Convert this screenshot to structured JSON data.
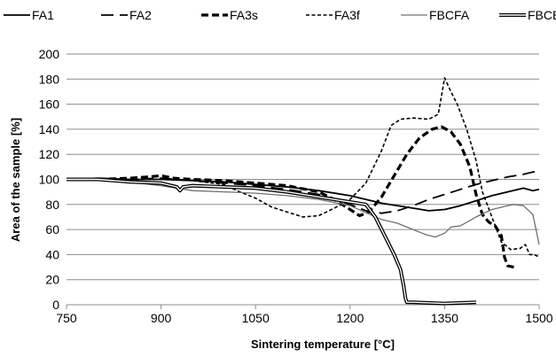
{
  "chart_data": {
    "type": "line",
    "xlabel": "Sintering temperature [°C]",
    "ylabel": "Area of the sample [%]",
    "xlim": [
      750,
      1500
    ],
    "ylim": [
      0,
      200
    ],
    "x_ticks": [
      "750",
      "900",
      "1050",
      "1200",
      "1350",
      "1500"
    ],
    "y_ticks": [
      "0",
      "20",
      "40",
      "60",
      "80",
      "100",
      "120",
      "140",
      "160",
      "180",
      "200"
    ],
    "grid": "horizontal",
    "legend_position": "top",
    "series": [
      {
        "name": "FA1",
        "style": "solid",
        "color": "#000000",
        "points": [
          [
            750,
            100
          ],
          [
            800,
            101
          ],
          [
            850,
            100
          ],
          [
            900,
            100
          ],
          [
            950,
            99
          ],
          [
            1000,
            98
          ],
          [
            1050,
            96
          ],
          [
            1100,
            94
          ],
          [
            1150,
            91
          ],
          [
            1200,
            87
          ],
          [
            1250,
            81
          ],
          [
            1300,
            77
          ],
          [
            1325,
            75
          ],
          [
            1350,
            76
          ],
          [
            1375,
            79
          ],
          [
            1400,
            83
          ],
          [
            1425,
            87
          ],
          [
            1450,
            90
          ],
          [
            1475,
            93
          ],
          [
            1490,
            91
          ],
          [
            1500,
            92
          ]
        ]
      },
      {
        "name": "FA2",
        "style": "long-dash",
        "color": "#000000",
        "points": [
          [
            750,
            100
          ],
          [
            800,
            100
          ],
          [
            850,
            100
          ],
          [
            900,
            101
          ],
          [
            950,
            99
          ],
          [
            1000,
            97
          ],
          [
            1050,
            95
          ],
          [
            1100,
            92
          ],
          [
            1150,
            88
          ],
          [
            1200,
            80
          ],
          [
            1225,
            75
          ],
          [
            1250,
            73
          ],
          [
            1275,
            75
          ],
          [
            1300,
            79
          ],
          [
            1325,
            84
          ],
          [
            1350,
            88
          ],
          [
            1375,
            92
          ],
          [
            1400,
            96
          ],
          [
            1425,
            99
          ],
          [
            1450,
            102
          ],
          [
            1475,
            104
          ],
          [
            1500,
            107
          ]
        ]
      },
      {
        "name": "FA3s",
        "style": "bold-dash",
        "color": "#000000",
        "points": [
          [
            750,
            100
          ],
          [
            800,
            100
          ],
          [
            850,
            101
          ],
          [
            880,
            102
          ],
          [
            900,
            103
          ],
          [
            920,
            101
          ],
          [
            950,
            100
          ],
          [
            1000,
            99
          ],
          [
            1050,
            97
          ],
          [
            1100,
            95
          ],
          [
            1150,
            90
          ],
          [
            1175,
            84
          ],
          [
            1200,
            76
          ],
          [
            1215,
            71
          ],
          [
            1230,
            74
          ],
          [
            1250,
            86
          ],
          [
            1270,
            103
          ],
          [
            1290,
            120
          ],
          [
            1310,
            133
          ],
          [
            1330,
            140
          ],
          [
            1345,
            142
          ],
          [
            1360,
            138
          ],
          [
            1375,
            128
          ],
          [
            1390,
            110
          ],
          [
            1400,
            88
          ],
          [
            1410,
            72
          ],
          [
            1420,
            66
          ],
          [
            1430,
            63
          ],
          [
            1440,
            55
          ],
          [
            1445,
            38
          ],
          [
            1450,
            31
          ],
          [
            1460,
            30
          ]
        ]
      },
      {
        "name": "FA3f",
        "style": "dotted",
        "color": "#000000",
        "points": [
          [
            750,
            100
          ],
          [
            800,
            100
          ],
          [
            850,
            100
          ],
          [
            900,
            100
          ],
          [
            950,
            99
          ],
          [
            1000,
            96
          ],
          [
            1025,
            90
          ],
          [
            1050,
            85
          ],
          [
            1075,
            78
          ],
          [
            1100,
            74
          ],
          [
            1125,
            70
          ],
          [
            1150,
            71
          ],
          [
            1175,
            77
          ],
          [
            1200,
            84
          ],
          [
            1225,
            97
          ],
          [
            1250,
            123
          ],
          [
            1265,
            143
          ],
          [
            1280,
            148
          ],
          [
            1300,
            149
          ],
          [
            1325,
            148
          ],
          [
            1340,
            152
          ],
          [
            1350,
            181
          ],
          [
            1360,
            170
          ],
          [
            1370,
            160
          ],
          [
            1385,
            140
          ],
          [
            1400,
            115
          ],
          [
            1410,
            90
          ],
          [
            1425,
            70
          ],
          [
            1440,
            50
          ],
          [
            1455,
            44
          ],
          [
            1470,
            45
          ],
          [
            1478,
            48
          ],
          [
            1485,
            40
          ],
          [
            1492,
            40
          ],
          [
            1500,
            38
          ]
        ]
      },
      {
        "name": "FBCFA",
        "style": "thin-solid",
        "color": "#707070",
        "points": [
          [
            750,
            100
          ],
          [
            800,
            100
          ],
          [
            850,
            98
          ],
          [
            900,
            95
          ],
          [
            925,
            93
          ],
          [
            950,
            91
          ],
          [
            1000,
            90
          ],
          [
            1050,
            89
          ],
          [
            1100,
            87
          ],
          [
            1150,
            84
          ],
          [
            1200,
            79
          ],
          [
            1250,
            68
          ],
          [
            1275,
            65
          ],
          [
            1300,
            60
          ],
          [
            1320,
            56
          ],
          [
            1335,
            54
          ],
          [
            1350,
            57
          ],
          [
            1360,
            62
          ],
          [
            1375,
            63
          ],
          [
            1400,
            70
          ],
          [
            1425,
            76
          ],
          [
            1450,
            79
          ],
          [
            1460,
            80
          ],
          [
            1475,
            79
          ],
          [
            1490,
            72
          ],
          [
            1500,
            48
          ]
        ]
      },
      {
        "name": "FBCBA",
        "style": "double",
        "color": "#000000",
        "points": [
          [
            750,
            100
          ],
          [
            800,
            100
          ],
          [
            850,
            98
          ],
          [
            900,
            97
          ],
          [
            925,
            94
          ],
          [
            930,
            91
          ],
          [
            935,
            94
          ],
          [
            950,
            95
          ],
          [
            1000,
            94
          ],
          [
            1050,
            93
          ],
          [
            1100,
            90
          ],
          [
            1150,
            86
          ],
          [
            1200,
            82
          ],
          [
            1225,
            80
          ],
          [
            1240,
            70
          ],
          [
            1255,
            55
          ],
          [
            1270,
            40
          ],
          [
            1280,
            28
          ],
          [
            1285,
            15
          ],
          [
            1288,
            5
          ],
          [
            1290,
            2
          ],
          [
            1300,
            2
          ],
          [
            1350,
            1
          ],
          [
            1400,
            2
          ]
        ]
      }
    ]
  }
}
